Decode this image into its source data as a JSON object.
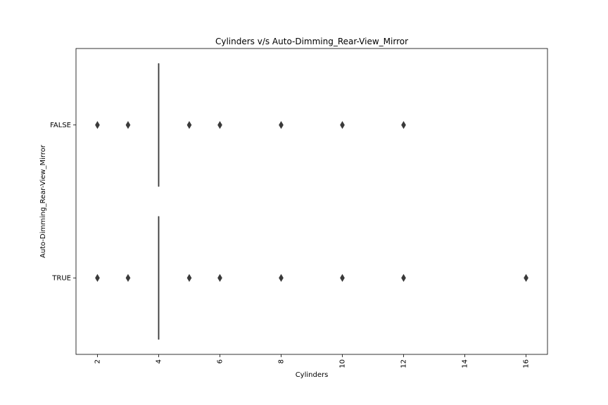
{
  "chart_data": {
    "type": "box",
    "orientation": "horizontal",
    "title": "Cylinders v/s Auto-Dimming_Rear-View_Mirror",
    "xlabel": "Cylinders",
    "ylabel": "Auto-Dimming_Rear-View_Mirror",
    "xlim": [
      1.3,
      16.7
    ],
    "xticks": [
      2,
      4,
      6,
      8,
      10,
      12,
      14,
      16
    ],
    "xtick_rotation": 90,
    "categories": [
      "FALSE",
      "TRUE"
    ],
    "series": [
      {
        "category": "FALSE",
        "q1": 4,
        "median": 4,
        "q3": 4,
        "whisker_low": 4,
        "whisker_high": 4,
        "outliers": [
          2,
          3,
          5,
          6,
          8,
          10,
          12
        ]
      },
      {
        "category": "TRUE",
        "q1": 4,
        "median": 4,
        "q3": 4,
        "whisker_low": 4,
        "whisker_high": 4,
        "outliers": [
          2,
          3,
          5,
          6,
          8,
          10,
          12,
          16
        ]
      }
    ],
    "colors": {
      "box": "#3a3a3a",
      "outlier": "#3a3a3a"
    },
    "grid": false,
    "legend": "none"
  }
}
